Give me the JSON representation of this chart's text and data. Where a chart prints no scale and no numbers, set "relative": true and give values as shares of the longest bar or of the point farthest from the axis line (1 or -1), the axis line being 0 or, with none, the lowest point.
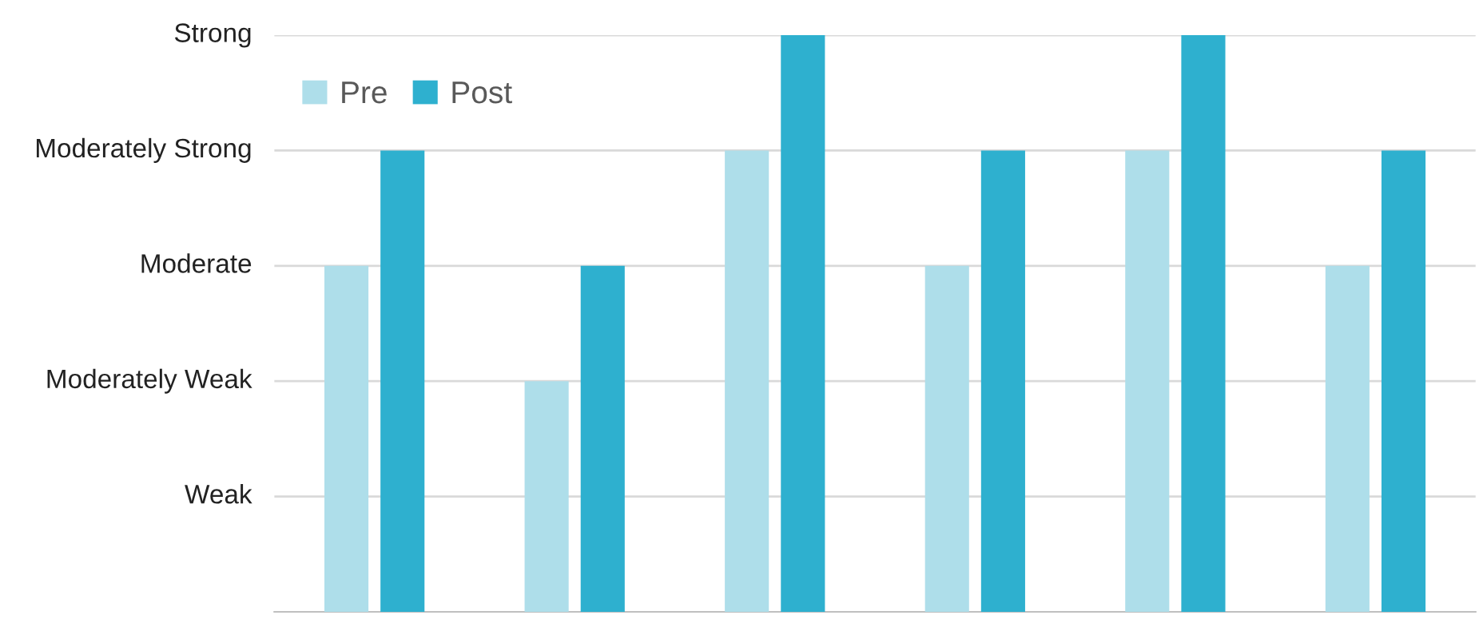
{
  "chart_data": {
    "type": "bar",
    "categories": [
      null,
      null,
      null,
      null,
      null,
      null
    ],
    "series": [
      {
        "name": "Pre",
        "color": "#aedeea",
        "values": [
          0.6,
          0.4,
          0.8,
          0.6,
          0.8,
          0.6
        ]
      },
      {
        "name": "Post",
        "color": "#2eb0cf",
        "values": [
          0.8,
          0.6,
          1,
          0.8,
          1,
          0.8
        ]
      }
    ],
    "relative": true,
    "ref_lines": [
      {
        "axis": "y",
        "value": 0.2,
        "label": "Weak",
        "color": "#d9d9d9"
      },
      {
        "axis": "y",
        "value": 0.4,
        "label": "Moderately Weak",
        "color": "#d9d9d9"
      },
      {
        "axis": "y",
        "value": 0.6,
        "label": "Moderate",
        "color": "#d9d9d9"
      },
      {
        "axis": "y",
        "value": 0.8,
        "label": "Moderately Strong",
        "color": "#d9d9d9"
      },
      {
        "axis": "y",
        "value": 1,
        "label": "Strong",
        "color": "#d9d9d9"
      }
    ],
    "legend": "top left"
  }
}
